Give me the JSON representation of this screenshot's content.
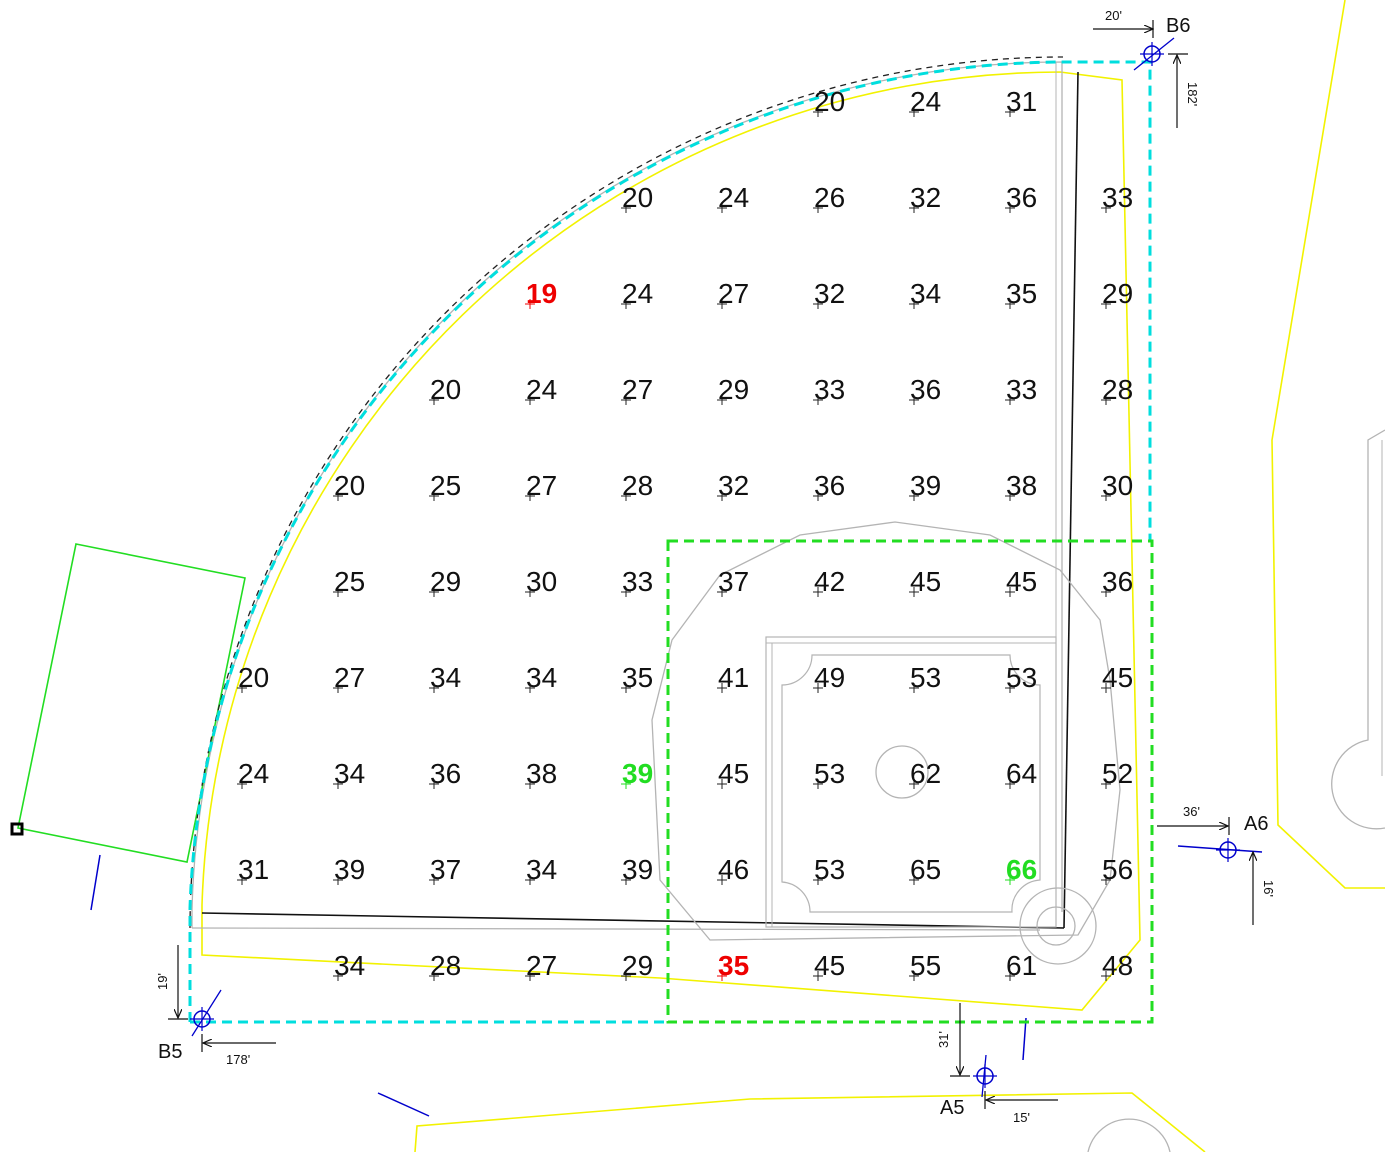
{
  "colors": {
    "field_boundary": "#00dede",
    "infield_boundary": "#22dd22",
    "playing_surface": "#f2f200",
    "outline": "#b4b4b4",
    "low_reading": "#ee0000",
    "high_reading": "#22dd22",
    "marker": "#0000cc"
  },
  "icons": {
    "survey_point": "crosshair-circle-icon",
    "reading_marker": "plus-marker-icon"
  },
  "grid": {
    "rows": [
      [
        "",
        "",
        "",
        "",
        "",
        "",
        "20",
        "24",
        "31",
        ""
      ],
      [
        "",
        "",
        "",
        "",
        "20",
        "24",
        "26",
        "32",
        "36",
        "33"
      ],
      [
        "",
        "",
        "",
        "19",
        "24",
        "27",
        "32",
        "34",
        "35",
        "29"
      ],
      [
        "",
        "",
        "20",
        "24",
        "27",
        "29",
        "33",
        "36",
        "33",
        "28"
      ],
      [
        "",
        "20",
        "25",
        "27",
        "28",
        "32",
        "36",
        "39",
        "38",
        "30"
      ],
      [
        "",
        "25",
        "29",
        "30",
        "33",
        "37",
        "42",
        "45",
        "45",
        "36"
      ],
      [
        "20",
        "27",
        "34",
        "34",
        "35",
        "41",
        "49",
        "53",
        "53",
        "45"
      ],
      [
        "24",
        "34",
        "36",
        "38",
        "39",
        "45",
        "53",
        "62",
        "64",
        "52"
      ],
      [
        "31",
        "39",
        "37",
        "34",
        "39",
        "46",
        "53",
        "65",
        "66",
        "56"
      ],
      [
        "",
        "34",
        "28",
        "27",
        "29",
        "35",
        "45",
        "55",
        "61",
        "48"
      ]
    ],
    "low_value": "19",
    "low_cells": [
      [
        2,
        3
      ],
      [
        9,
        5
      ]
    ],
    "high_cells": [
      [
        7,
        4
      ],
      [
        8,
        8
      ]
    ]
  },
  "survey_points": [
    {
      "label": "B6",
      "d1": "20'",
      "d2": "182'"
    },
    {
      "label": "A6",
      "d1": "36'",
      "d2": "16'"
    },
    {
      "label": "B5",
      "d1": "19'",
      "d2": "178'"
    },
    {
      "label": "A5",
      "d1": "31'",
      "d2": "15'"
    }
  ]
}
